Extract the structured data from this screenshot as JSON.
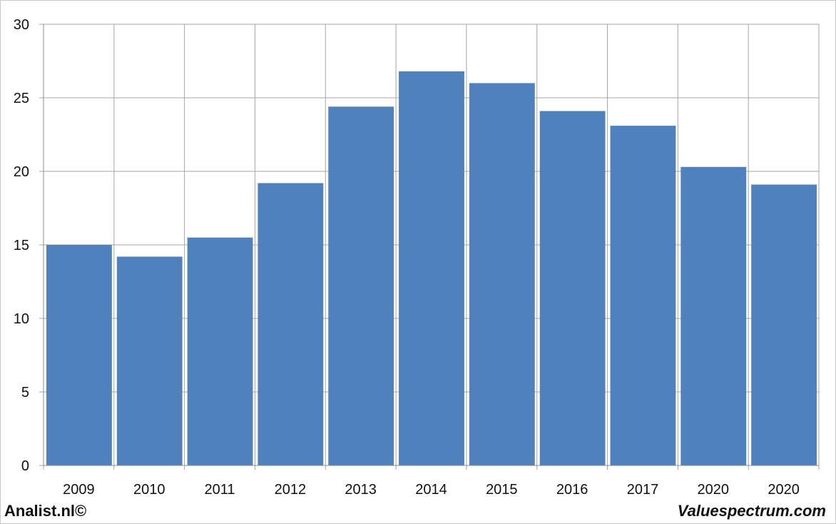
{
  "chart_data": {
    "type": "bar",
    "categories": [
      "2009",
      "2010",
      "2011",
      "2012",
      "2013",
      "2014",
      "2015",
      "2016",
      "2017",
      "2020",
      "2020"
    ],
    "values": [
      15.0,
      14.2,
      15.5,
      19.2,
      24.4,
      26.8,
      26.0,
      24.1,
      23.1,
      20.3,
      19.1
    ],
    "title": "",
    "xlabel": "",
    "ylabel": "",
    "ylim": [
      0,
      30
    ],
    "yticks": [
      "0",
      "5",
      "10",
      "15",
      "20",
      "25",
      "30"
    ],
    "grid": true,
    "bar_color": "#4f81bd",
    "grid_color": "#a6a6a6"
  },
  "footer": {
    "left": "Analist.nl©",
    "right": "Valuespectrum.com"
  }
}
